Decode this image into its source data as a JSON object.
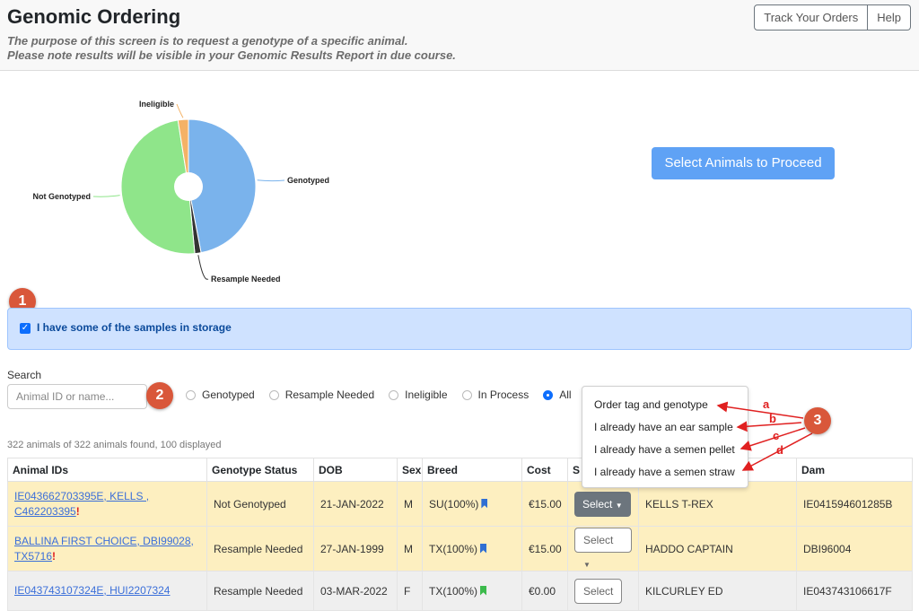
{
  "header": {
    "title": "Genomic Ordering",
    "subtitle_line1": "The purpose of this screen is to request a genotype of a specific animal.",
    "subtitle_line2": "Please note results will be visible in your Genomic Results Report in due course.",
    "track_orders_label": "Track Your Orders",
    "help_label": "Help"
  },
  "chart_data": {
    "type": "pie",
    "donut": true,
    "title": "",
    "labels": [
      "Genotyped",
      "Resample Needed",
      "Not Genotyped",
      "Ineligible"
    ],
    "values": [
      47,
      1.5,
      49,
      2.5
    ],
    "colors": [
      "#7ab3ec",
      "#333333",
      "#8fe58a",
      "#f4b266"
    ]
  },
  "proceed_label": "Select Animals to Proceed",
  "badges": {
    "b1": "1",
    "b2": "2",
    "b3": "3"
  },
  "storage": {
    "label": "I have some of the samples in storage",
    "checked": true
  },
  "search": {
    "label": "Search",
    "placeholder": "Animal ID or name..."
  },
  "filters": [
    {
      "label": "Genotyped",
      "checked": false
    },
    {
      "label": "Resample Needed",
      "checked": false
    },
    {
      "label": "Ineligible",
      "checked": false
    },
    {
      "label": "In Process",
      "checked": false
    },
    {
      "label": "All",
      "checked": true
    }
  ],
  "found_text": "322 animals of 322 animals found, 100 displayed",
  "table": {
    "headers": [
      "Animal IDs",
      "Genotype Status",
      "DOB",
      "Sex",
      "Breed",
      "Cost",
      "S",
      "",
      "Dam"
    ],
    "rows": [
      {
        "id_line1": "IE043662703395E, KELLS ,",
        "id_line2": "C462203395",
        "warn": "!",
        "status": "Not Genotyped",
        "dob": "21-JAN-2022",
        "sex": "M",
        "breed": "SU(100%)",
        "breed_color": "#2f6fd3",
        "cost": "€15.00",
        "select": "Select",
        "sire": "KELLS T-REX",
        "dam": "IE041594601285B"
      },
      {
        "id_line1": "BALLINA FIRST CHOICE, DBI99028,",
        "id_line2": "TX5716",
        "warn": "!",
        "status": "Resample Needed",
        "dob": "27-JAN-1999",
        "sex": "M",
        "breed": "TX(100%)",
        "breed_color": "#2f6fd3",
        "cost": "€15.00",
        "select": "Select",
        "sire": "HADDO CAPTAIN",
        "dam": "DBI96004"
      },
      {
        "id_line1": "IE043743107324E, HUI2207324",
        "status": "Resample Needed",
        "dob": "03-MAR-2022",
        "sex": "F",
        "breed": "TX(100%)",
        "breed_color": "#3cba4c",
        "cost": "€0.00",
        "select": "Select",
        "sire": "KILCURLEY ED",
        "dam": "IE043743106617F"
      }
    ]
  },
  "dropdown": {
    "items": [
      "Order tag and genotype",
      "I already have an ear sample",
      "I already have a semen pellet",
      "I already have a semen straw"
    ]
  },
  "annotation_letters": [
    "a",
    "b",
    "c",
    "d"
  ]
}
